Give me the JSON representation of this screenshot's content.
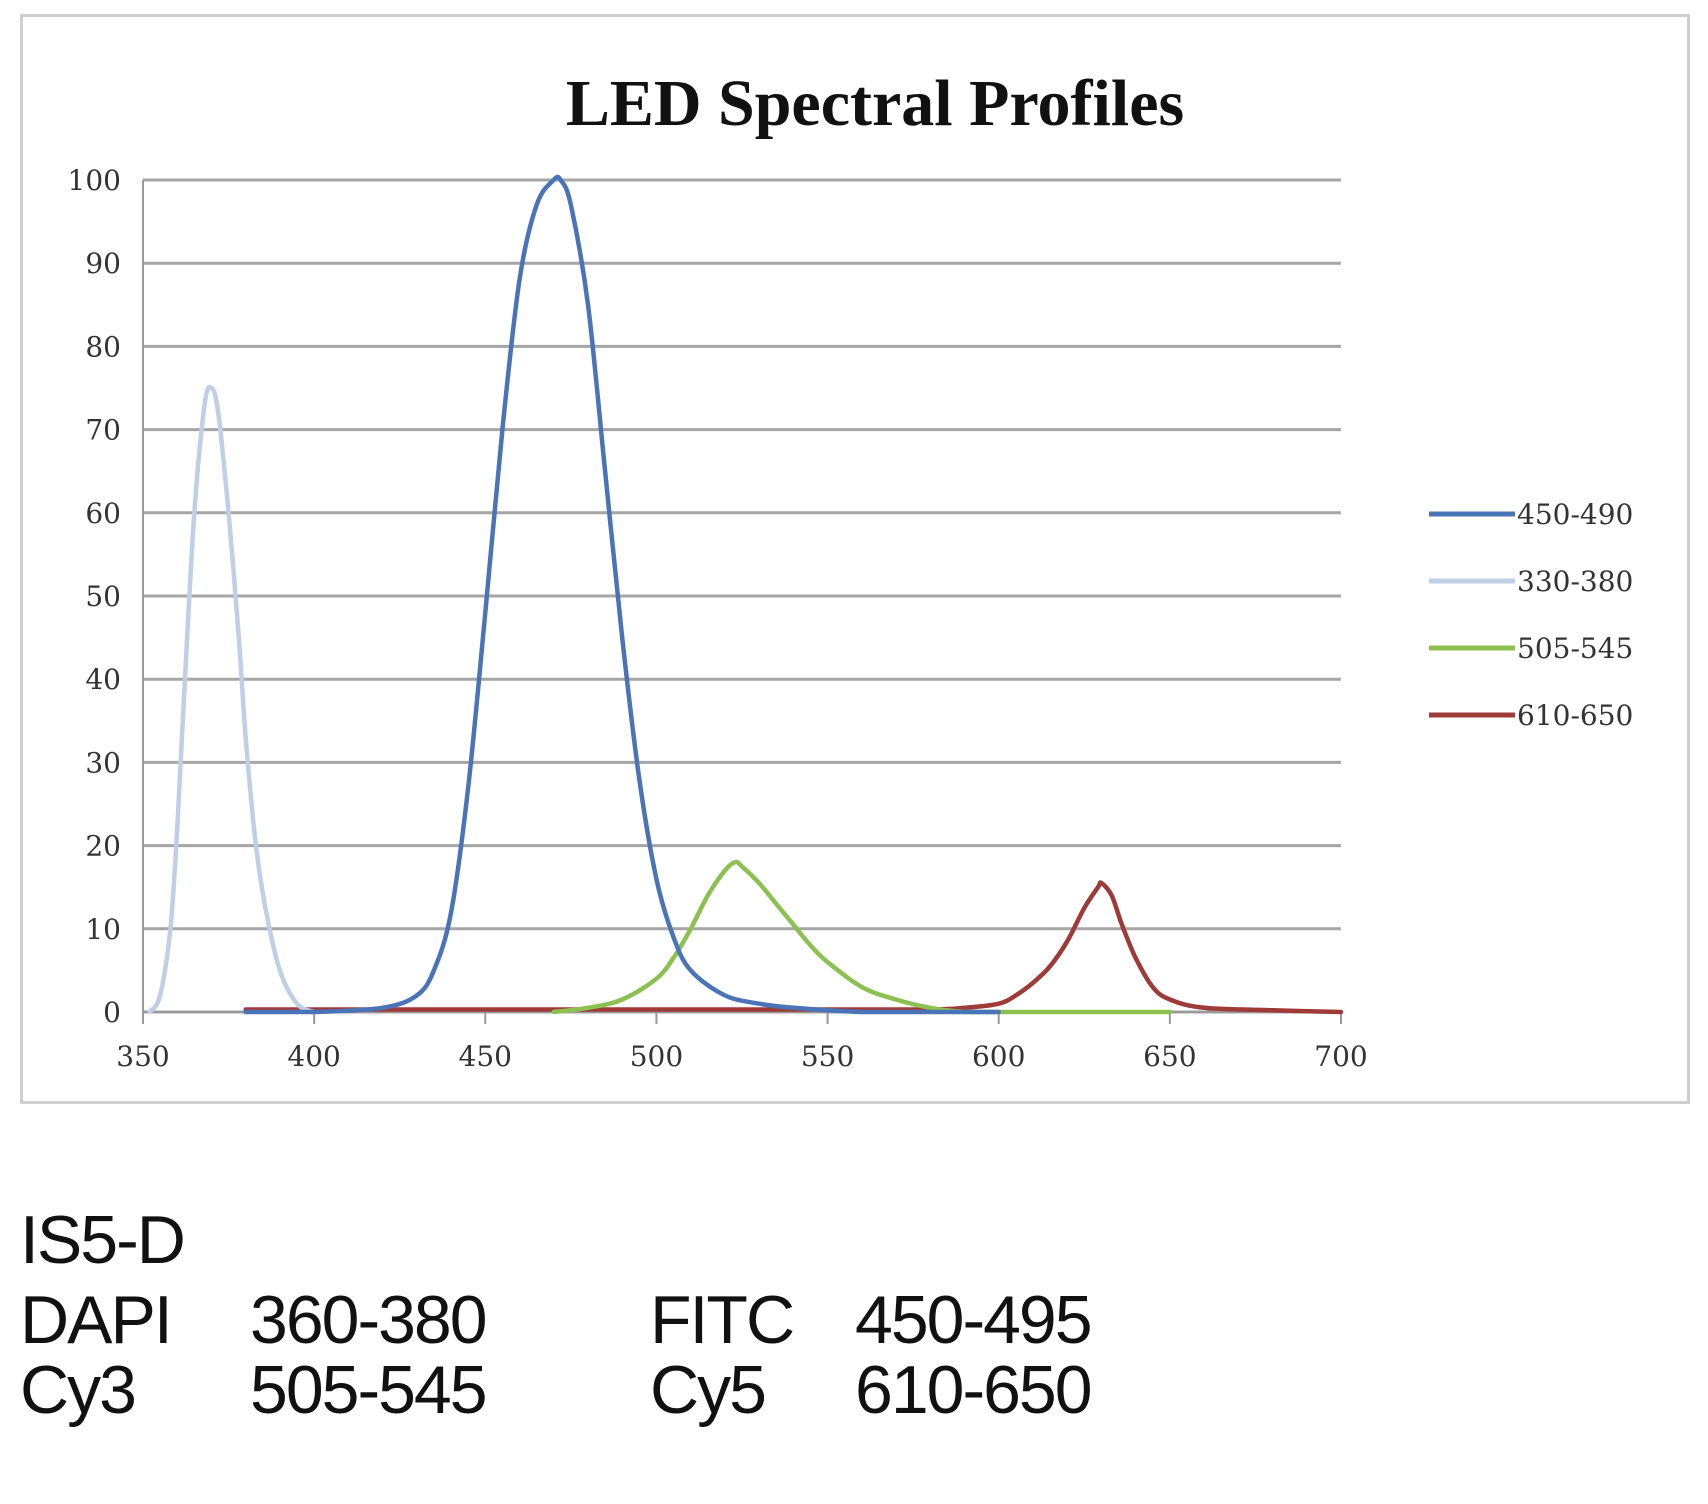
{
  "chart_data": {
    "type": "line",
    "title": "LED Spectral Profiles",
    "xlabel": "",
    "ylabel": "",
    "xlim": [
      350,
      700
    ],
    "ylim": [
      0,
      100
    ],
    "x_ticks": [
      "350",
      "400",
      "450",
      "500",
      "550",
      "600",
      "650",
      "700"
    ],
    "y_ticks": [
      "0",
      "10",
      "20",
      "30",
      "40",
      "50",
      "60",
      "70",
      "80",
      "90",
      "100"
    ],
    "grid": true,
    "legend_position": "right",
    "series": [
      {
        "name": "450-490",
        "color": "#4a74b8",
        "x": [
          380,
          400,
          420,
          430,
          435,
          440,
          445,
          450,
          455,
          460,
          465,
          470,
          472,
          475,
          480,
          485,
          490,
          495,
          500,
          505,
          510,
          520,
          530,
          540,
          560,
          580,
          600
        ],
        "y": [
          0,
          0,
          0.5,
          2,
          5,
          12,
          27,
          48,
          70,
          88,
          97,
          100,
          100,
          97,
          85,
          65,
          45,
          28,
          16,
          9,
          5,
          2,
          1,
          0.5,
          0,
          0,
          0
        ]
      },
      {
        "name": "330-380",
        "color": "#bfcfe6",
        "x": [
          352,
          355,
          358,
          360,
          362,
          365,
          368,
          370,
          372,
          375,
          378,
          380,
          383,
          386,
          390,
          395,
          400
        ],
        "y": [
          0,
          2,
          10,
          22,
          38,
          60,
          73,
          75,
          72,
          60,
          45,
          33,
          20,
          12,
          5,
          1,
          0
        ]
      },
      {
        "name": "505-545",
        "color": "#8cc152",
        "x": [
          470,
          480,
          490,
          500,
          505,
          510,
          515,
          520,
          523,
          525,
          530,
          535,
          540,
          545,
          550,
          560,
          570,
          580,
          590,
          600,
          620,
          650
        ],
        "y": [
          0,
          0.5,
          1.5,
          4,
          6.5,
          10,
          14,
          17,
          18,
          17.5,
          15.5,
          13,
          10.5,
          8,
          6,
          3,
          1.5,
          0.5,
          0,
          0,
          0,
          0
        ]
      },
      {
        "name": "610-650",
        "color": "#9e3a38",
        "x": [
          380,
          450,
          500,
          550,
          580,
          590,
          600,
          605,
          610,
          615,
          620,
          625,
          629,
          630,
          633,
          636,
          640,
          645,
          650,
          660,
          680,
          700
        ],
        "y": [
          0.3,
          0.3,
          0.3,
          0.3,
          0.3,
          0.5,
          1,
          2,
          3.5,
          5.5,
          8.5,
          12.5,
          15,
          15.5,
          14,
          10.5,
          6.5,
          3,
          1.5,
          0.5,
          0.2,
          0
        ]
      }
    ]
  },
  "caption": {
    "model": "IS5-D",
    "filters": [
      {
        "name": "DAPI",
        "range": "360-380"
      },
      {
        "name": "FITC",
        "range": "450-495"
      },
      {
        "name": "Cy3",
        "range": "505-545"
      },
      {
        "name": "Cy5",
        "range": "610-650"
      }
    ]
  }
}
